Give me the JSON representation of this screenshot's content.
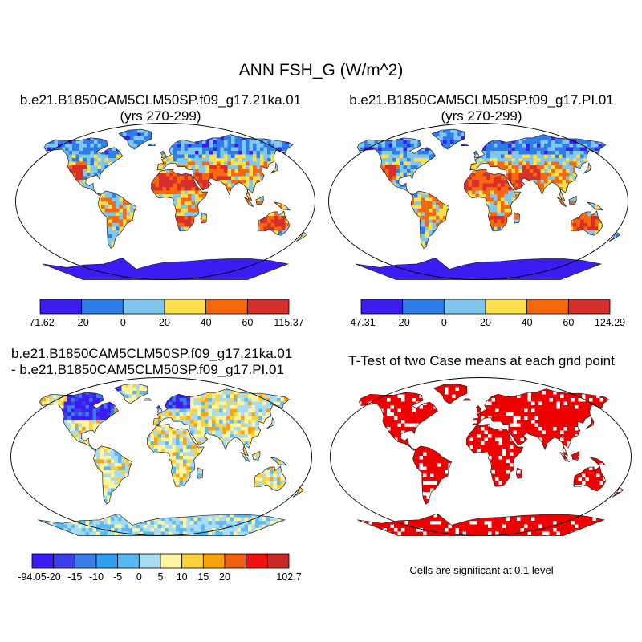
{
  "title": "ANN FSH_G (W/m^2)",
  "panels": [
    {
      "id": "case1",
      "title_line1": "b.e21.B1850CAM5CLM50SP.f09_g17.21ka.01",
      "title_line2": "(yrs 270-299)",
      "colorbar": {
        "labels": [
          "-71.62",
          "-20",
          "0",
          "20",
          "40",
          "60",
          "115.37"
        ],
        "colors": [
          "#3b1cf2",
          "#2f7de8",
          "#7ec8f0",
          "#fce04a",
          "#f9680c",
          "#d7302a"
        ]
      }
    },
    {
      "id": "case2",
      "title_line1": "b.e21.B1850CAM5CLM50SP.f09_g17.PI.01",
      "title_line2": "(yrs 270-299)",
      "colorbar": {
        "labels": [
          "-47.31",
          "-20",
          "0",
          "20",
          "40",
          "60",
          "124.29"
        ],
        "colors": [
          "#3b1cf2",
          "#2f7de8",
          "#7ec8f0",
          "#fce04a",
          "#f9680c",
          "#d7302a"
        ]
      }
    },
    {
      "id": "difference",
      "title_line1": "b.e21.B1850CAM5CLM50SP.f09_g17.21ka.01",
      "title_line2": "- b.e21.B1850CAM5CLM50SP.f09_g17.PI.01",
      "colorbar": {
        "labels": [
          "-94.05",
          "-20",
          "-15",
          "-10",
          "-5",
          "0",
          "5",
          "10",
          "15",
          "20",
          "102.7"
        ],
        "colors": [
          "#3b1cf2",
          "#3d3ee8",
          "#3a7de6",
          "#2fa0ef",
          "#5ab8f2",
          "#a9dcf2",
          "#fff4a0",
          "#fcd23a",
          "#f9a20c",
          "#f06010",
          "#ef1010",
          "#c82828"
        ]
      }
    },
    {
      "id": "ttest",
      "title_line1": "T-Test of two Case means at each grid point",
      "note": "Cells are significant at 0.1 level",
      "sig_color": "#ee0000"
    }
  ]
}
